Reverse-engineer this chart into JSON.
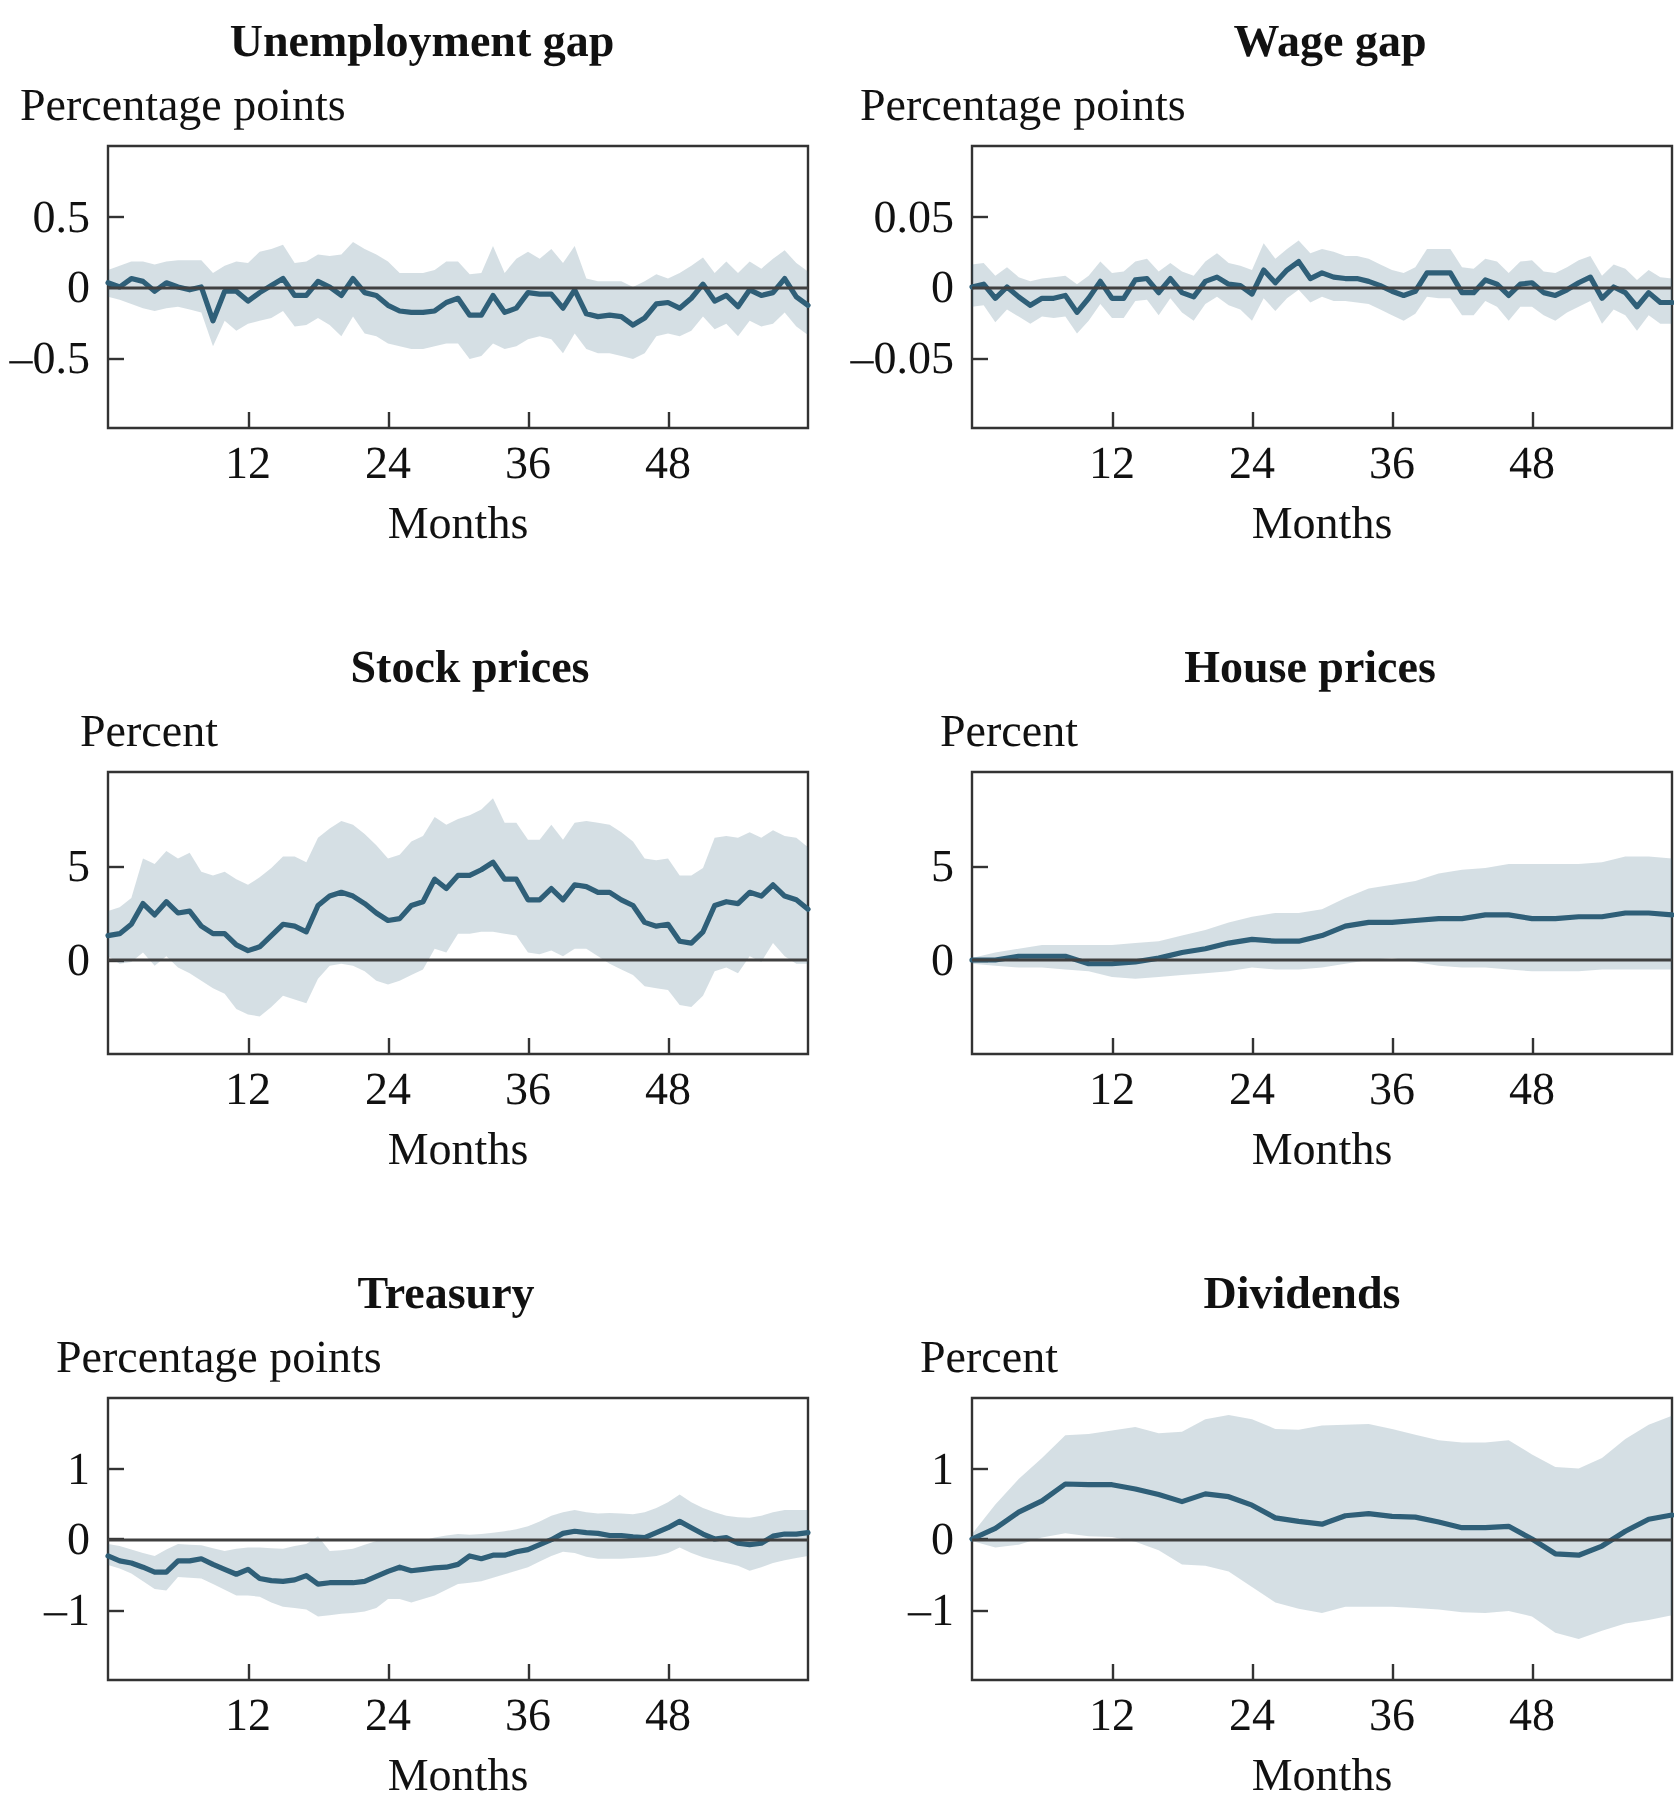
{
  "chart_data": [
    {
      "type": "line",
      "title": "Unemployment gap",
      "ylabel": "Percentage points",
      "xlabel": "Months",
      "xlim": [
        0,
        60
      ],
      "xticks": [
        12,
        24,
        36,
        48
      ],
      "ylim": [
        -1,
        1
      ],
      "yticks": [
        {
          "value": -0.5,
          "label": "–0.5"
        },
        0,
        0.5
      ],
      "ref_lines": [
        {
          "axis": "y",
          "value": 0,
          "color": "#404040"
        }
      ],
      "x": [
        0,
        1,
        2,
        3,
        4,
        5,
        6,
        7,
        8,
        9,
        10,
        11,
        12,
        13,
        14,
        15,
        16,
        17,
        18,
        19,
        20,
        21,
        22,
        23,
        24,
        25,
        26,
        27,
        28,
        29,
        30,
        31,
        32,
        33,
        34,
        35,
        36,
        37,
        38,
        39,
        40,
        41,
        42,
        43,
        44,
        45,
        46,
        47,
        48,
        49,
        50,
        51,
        52,
        53,
        54,
        55,
        56,
        57,
        58,
        59,
        60
      ],
      "series": [
        {
          "color": "#2f5f78",
          "values": [
            0.03,
            0.0,
            0.06,
            0.04,
            -0.03,
            0.03,
            0.0,
            -0.02,
            0.0,
            -0.24,
            -0.03,
            -0.03,
            -0.1,
            -0.04,
            0.01,
            0.06,
            -0.06,
            -0.06,
            0.04,
            0.0,
            -0.06,
            0.06,
            -0.04,
            -0.06,
            -0.13,
            -0.17,
            -0.18,
            -0.18,
            -0.17,
            -0.11,
            -0.08,
            -0.2,
            -0.2,
            -0.06,
            -0.18,
            -0.15,
            -0.04,
            -0.05,
            -0.05,
            -0.15,
            -0.02,
            -0.19,
            -0.21,
            -0.2,
            -0.21,
            -0.27,
            -0.22,
            -0.12,
            -0.11,
            -0.15,
            -0.08,
            0.02,
            -0.1,
            -0.06,
            -0.14,
            -0.02,
            -0.06,
            -0.04,
            0.06,
            -0.07,
            -0.13
          ],
          "upper": [
            0.12,
            0.15,
            0.18,
            0.18,
            0.16,
            0.18,
            0.19,
            0.19,
            0.19,
            0.1,
            0.15,
            0.18,
            0.17,
            0.25,
            0.27,
            0.3,
            0.17,
            0.18,
            0.23,
            0.22,
            0.23,
            0.32,
            0.27,
            0.23,
            0.18,
            0.1,
            0.1,
            0.1,
            0.12,
            0.18,
            0.18,
            0.09,
            0.1,
            0.29,
            0.1,
            0.2,
            0.25,
            0.2,
            0.27,
            0.17,
            0.29,
            0.06,
            0.04,
            0.04,
            0.04,
            0.0,
            0.04,
            0.09,
            0.06,
            0.1,
            0.15,
            0.21,
            0.1,
            0.18,
            0.1,
            0.18,
            0.13,
            0.2,
            0.26,
            0.17,
            0.11
          ],
          "lower": [
            -0.07,
            -0.09,
            -0.12,
            -0.15,
            -0.17,
            -0.15,
            -0.14,
            -0.16,
            -0.18,
            -0.42,
            -0.24,
            -0.31,
            -0.26,
            -0.24,
            -0.22,
            -0.17,
            -0.28,
            -0.27,
            -0.22,
            -0.27,
            -0.35,
            -0.21,
            -0.33,
            -0.35,
            -0.4,
            -0.42,
            -0.44,
            -0.44,
            -0.42,
            -0.4,
            -0.4,
            -0.51,
            -0.49,
            -0.4,
            -0.44,
            -0.42,
            -0.37,
            -0.35,
            -0.37,
            -0.47,
            -0.33,
            -0.44,
            -0.47,
            -0.47,
            -0.49,
            -0.51,
            -0.47,
            -0.35,
            -0.33,
            -0.35,
            -0.31,
            -0.21,
            -0.3,
            -0.26,
            -0.35,
            -0.24,
            -0.28,
            -0.26,
            -0.18,
            -0.28,
            -0.34
          ]
        }
      ]
    },
    {
      "type": "line",
      "title": "Wage gap",
      "ylabel": "Percentage points",
      "xlabel": "Months",
      "xlim": [
        0,
        60
      ],
      "xticks": [
        12,
        24,
        36,
        48
      ],
      "ylim": [
        -0.1,
        0.1
      ],
      "yticks": [
        {
          "value": -0.05,
          "label": "–0.05"
        },
        0,
        0.05
      ],
      "ref_lines": [
        {
          "axis": "y",
          "value": 0,
          "color": "#404040"
        }
      ],
      "x": [
        0,
        1,
        2,
        3,
        4,
        5,
        6,
        7,
        8,
        9,
        10,
        11,
        12,
        13,
        14,
        15,
        16,
        17,
        18,
        19,
        20,
        21,
        22,
        23,
        24,
        25,
        26,
        27,
        28,
        29,
        30,
        31,
        32,
        33,
        34,
        35,
        36,
        37,
        38,
        39,
        40,
        41,
        42,
        43,
        44,
        45,
        46,
        47,
        48,
        49,
        50,
        51,
        52,
        53,
        54,
        55,
        56,
        57,
        58,
        59,
        60
      ],
      "series": [
        {
          "color": "#2f5f78",
          "values": [
            0.0,
            0.002,
            -0.008,
            0.0,
            -0.007,
            -0.013,
            -0.008,
            -0.008,
            -0.006,
            -0.018,
            -0.008,
            0.004,
            -0.008,
            -0.008,
            0.005,
            0.006,
            -0.004,
            0.006,
            -0.004,
            -0.007,
            0.004,
            0.007,
            0.002,
            0.001,
            -0.005,
            0.012,
            0.003,
            0.012,
            0.018,
            0.006,
            0.01,
            0.007,
            0.006,
            0.006,
            0.004,
            0.001,
            -0.003,
            -0.006,
            -0.003,
            0.01,
            0.01,
            0.01,
            -0.004,
            -0.004,
            0.005,
            0.002,
            -0.006,
            0.002,
            0.003,
            -0.004,
            -0.006,
            -0.002,
            0.003,
            0.007,
            -0.008,
            0.0,
            -0.004,
            -0.014,
            -0.004,
            -0.011,
            -0.011
          ],
          "upper": [
            0.016,
            0.017,
            0.008,
            0.014,
            0.007,
            0.004,
            0.006,
            0.007,
            0.008,
            0.002,
            0.008,
            0.018,
            0.01,
            0.011,
            0.018,
            0.02,
            0.011,
            0.017,
            0.011,
            0.008,
            0.018,
            0.024,
            0.017,
            0.015,
            0.012,
            0.031,
            0.02,
            0.027,
            0.033,
            0.024,
            0.027,
            0.025,
            0.022,
            0.022,
            0.02,
            0.016,
            0.012,
            0.01,
            0.014,
            0.027,
            0.027,
            0.027,
            0.014,
            0.013,
            0.02,
            0.018,
            0.01,
            0.018,
            0.019,
            0.011,
            0.01,
            0.014,
            0.019,
            0.022,
            0.008,
            0.016,
            0.013,
            0.005,
            0.012,
            0.007,
            0.006
          ],
          "lower": [
            -0.014,
            -0.013,
            -0.025,
            -0.016,
            -0.021,
            -0.026,
            -0.021,
            -0.022,
            -0.021,
            -0.033,
            -0.024,
            -0.012,
            -0.022,
            -0.022,
            -0.01,
            -0.009,
            -0.02,
            -0.008,
            -0.018,
            -0.024,
            -0.012,
            -0.007,
            -0.013,
            -0.016,
            -0.024,
            -0.008,
            -0.017,
            -0.008,
            -0.002,
            -0.011,
            -0.007,
            -0.01,
            -0.01,
            -0.011,
            -0.012,
            -0.016,
            -0.02,
            -0.024,
            -0.019,
            -0.007,
            -0.008,
            -0.008,
            -0.02,
            -0.02,
            -0.01,
            -0.014,
            -0.024,
            -0.014,
            -0.014,
            -0.02,
            -0.024,
            -0.018,
            -0.014,
            -0.01,
            -0.026,
            -0.016,
            -0.02,
            -0.031,
            -0.02,
            -0.026,
            -0.026
          ]
        }
      ]
    },
    {
      "type": "line",
      "title": "Stock prices",
      "ylabel": "Percent",
      "xlabel": "Months",
      "xlim": [
        0,
        60
      ],
      "xticks": [
        12,
        24,
        36,
        48
      ],
      "ylim": [
        -5,
        10
      ],
      "yticks": [
        0,
        5
      ],
      "ref_lines": [
        {
          "axis": "y",
          "value": 0,
          "color": "#404040"
        }
      ],
      "x": [
        0,
        1,
        2,
        3,
        4,
        5,
        6,
        7,
        8,
        9,
        10,
        11,
        12,
        13,
        14,
        15,
        16,
        17,
        18,
        19,
        20,
        21,
        22,
        23,
        24,
        25,
        26,
        27,
        28,
        29,
        30,
        31,
        32,
        33,
        34,
        35,
        36,
        37,
        38,
        39,
        40,
        41,
        42,
        43,
        44,
        45,
        46,
        47,
        48,
        49,
        50,
        51,
        52,
        53,
        54,
        55,
        56,
        57,
        58,
        59,
        60
      ],
      "series": [
        {
          "color": "#2f5f78",
          "values": [
            1.3,
            1.4,
            1.9,
            3.0,
            2.4,
            3.1,
            2.5,
            2.6,
            1.8,
            1.4,
            1.4,
            0.8,
            0.5,
            0.7,
            1.3,
            1.9,
            1.8,
            1.5,
            2.9,
            3.4,
            3.6,
            3.4,
            3.0,
            2.5,
            2.1,
            2.2,
            2.9,
            3.1,
            4.3,
            3.8,
            4.5,
            4.5,
            4.8,
            5.2,
            4.3,
            4.3,
            3.2,
            3.2,
            3.8,
            3.2,
            4.0,
            3.9,
            3.6,
            3.6,
            3.2,
            2.9,
            2.0,
            1.8,
            1.9,
            1.0,
            0.9,
            1.5,
            2.9,
            3.1,
            3.0,
            3.6,
            3.4,
            4.0,
            3.4,
            3.2,
            2.7
          ],
          "upper": [
            2.6,
            2.8,
            3.3,
            5.4,
            5.1,
            5.8,
            5.4,
            5.7,
            4.7,
            4.5,
            4.7,
            4.3,
            4.0,
            4.4,
            4.9,
            5.5,
            5.5,
            5.2,
            6.5,
            7.0,
            7.4,
            7.2,
            6.7,
            6.1,
            5.4,
            5.6,
            6.3,
            6.6,
            7.6,
            7.2,
            7.5,
            7.7,
            8.0,
            8.6,
            7.3,
            7.3,
            6.4,
            6.4,
            7.2,
            6.4,
            7.3,
            7.4,
            7.3,
            7.2,
            6.8,
            6.3,
            5.4,
            5.3,
            5.4,
            4.5,
            4.5,
            4.9,
            6.5,
            6.6,
            6.5,
            6.8,
            6.5,
            6.9,
            6.6,
            6.5,
            6.0
          ],
          "lower": [
            0.2,
            -0.2,
            -0.1,
            0.4,
            -0.3,
            0.2,
            -0.4,
            -0.7,
            -1.1,
            -1.5,
            -1.8,
            -2.6,
            -2.9,
            -3.0,
            -2.5,
            -1.9,
            -2.1,
            -2.3,
            -1.0,
            -0.3,
            -0.2,
            -0.3,
            -0.6,
            -1.1,
            -1.3,
            -1.1,
            -0.8,
            -0.5,
            0.6,
            0.4,
            1.4,
            1.4,
            1.5,
            1.5,
            1.4,
            1.3,
            0.4,
            0.3,
            0.5,
            0.2,
            0.6,
            0.6,
            0.2,
            -0.2,
            -0.5,
            -0.8,
            -1.4,
            -1.5,
            -1.6,
            -2.4,
            -2.5,
            -1.9,
            -0.6,
            -0.4,
            -0.7,
            0.2,
            -0.1,
            0.9,
            0.2,
            -0.2,
            -0.2
          ]
        }
      ]
    },
    {
      "type": "line",
      "title": "House prices",
      "ylabel": "Percent",
      "xlabel": "Months",
      "xlim": [
        0,
        60
      ],
      "xticks": [
        12,
        24,
        36,
        48
      ],
      "ylim": [
        -5,
        10
      ],
      "yticks": [
        0,
        5
      ],
      "ref_lines": [
        {
          "axis": "y",
          "value": 0,
          "color": "#404040"
        }
      ],
      "x": [
        0,
        2,
        4,
        6,
        8,
        10,
        12,
        14,
        16,
        18,
        20,
        22,
        24,
        26,
        28,
        30,
        32,
        34,
        36,
        38,
        40,
        42,
        44,
        46,
        48,
        50,
        52,
        54,
        56,
        58,
        60
      ],
      "series": [
        {
          "color": "#2f5f78",
          "values": [
            0.0,
            0.0,
            0.2,
            0.2,
            0.2,
            -0.2,
            -0.2,
            -0.1,
            0.1,
            0.4,
            0.6,
            0.9,
            1.1,
            1.0,
            1.0,
            1.3,
            1.8,
            2.0,
            2.0,
            2.1,
            2.2,
            2.2,
            2.4,
            2.4,
            2.2,
            2.2,
            2.3,
            2.3,
            2.5,
            2.5,
            2.4
          ],
          "upper": [
            0.1,
            0.4,
            0.6,
            0.8,
            0.8,
            0.8,
            0.8,
            0.9,
            1.0,
            1.3,
            1.6,
            2.0,
            2.3,
            2.5,
            2.5,
            2.7,
            3.3,
            3.8,
            4.0,
            4.2,
            4.6,
            4.8,
            4.9,
            5.1,
            5.1,
            5.1,
            5.1,
            5.2,
            5.5,
            5.5,
            5.4
          ],
          "lower": [
            -0.2,
            -0.3,
            -0.4,
            -0.4,
            -0.5,
            -0.6,
            -0.9,
            -1.0,
            -0.9,
            -0.8,
            -0.7,
            -0.6,
            -0.4,
            -0.5,
            -0.5,
            -0.4,
            -0.2,
            0.0,
            0.1,
            -0.1,
            -0.3,
            -0.4,
            -0.4,
            -0.5,
            -0.6,
            -0.6,
            -0.6,
            -0.5,
            -0.5,
            -0.5,
            -0.5
          ]
        }
      ]
    },
    {
      "type": "line",
      "title": "Treasury",
      "ylabel": "Percentage points",
      "xlabel": "Months",
      "xlim": [
        0,
        60
      ],
      "xticks": [
        12,
        24,
        36,
        48
      ],
      "ylim": [
        -2,
        2
      ],
      "yticks": [
        {
          "value": -1,
          "label": "–1"
        },
        0,
        1
      ],
      "ref_lines": [
        {
          "axis": "y",
          "value": 0,
          "color": "#404040"
        }
      ],
      "x": [
        0,
        1,
        2,
        3,
        4,
        5,
        6,
        7,
        8,
        9,
        10,
        11,
        12,
        13,
        14,
        15,
        16,
        17,
        18,
        19,
        20,
        21,
        22,
        23,
        24,
        25,
        26,
        27,
        28,
        29,
        30,
        31,
        32,
        33,
        34,
        35,
        36,
        37,
        38,
        39,
        40,
        41,
        42,
        43,
        44,
        45,
        46,
        47,
        48,
        49,
        50,
        51,
        52,
        53,
        54,
        55,
        56,
        57,
        58,
        59,
        60
      ],
      "series": [
        {
          "color": "#2f5f78",
          "values": [
            -0.24,
            -0.31,
            -0.34,
            -0.4,
            -0.47,
            -0.47,
            -0.31,
            -0.31,
            -0.28,
            -0.36,
            -0.43,
            -0.5,
            -0.43,
            -0.56,
            -0.59,
            -0.6,
            -0.58,
            -0.52,
            -0.64,
            -0.62,
            -0.62,
            -0.62,
            -0.6,
            -0.53,
            -0.46,
            -0.4,
            -0.45,
            -0.43,
            -0.41,
            -0.4,
            -0.36,
            -0.24,
            -0.28,
            -0.23,
            -0.23,
            -0.18,
            -0.15,
            -0.08,
            -0.01,
            0.08,
            0.11,
            0.09,
            0.08,
            0.05,
            0.05,
            0.03,
            0.02,
            0.09,
            0.16,
            0.25,
            0.16,
            0.07,
            0.0,
            0.02,
            -0.06,
            -0.08,
            -0.06,
            0.04,
            0.07,
            0.07,
            0.09
          ],
          "upper": [
            -0.07,
            -0.1,
            -0.15,
            -0.2,
            -0.24,
            -0.15,
            -0.07,
            -0.08,
            -0.09,
            -0.13,
            -0.17,
            -0.14,
            -0.12,
            -0.12,
            -0.13,
            -0.14,
            -0.1,
            -0.07,
            0.04,
            -0.17,
            -0.16,
            -0.14,
            -0.08,
            -0.03,
            0.0,
            -0.01,
            -0.02,
            -0.02,
            0.02,
            0.05,
            0.07,
            0.06,
            0.07,
            0.09,
            0.11,
            0.14,
            0.18,
            0.25,
            0.33,
            0.38,
            0.41,
            0.38,
            0.36,
            0.37,
            0.36,
            0.35,
            0.38,
            0.44,
            0.52,
            0.63,
            0.52,
            0.44,
            0.38,
            0.33,
            0.31,
            0.3,
            0.33,
            0.38,
            0.41,
            0.41,
            0.41
          ],
          "lower": [
            -0.37,
            -0.42,
            -0.49,
            -0.6,
            -0.71,
            -0.73,
            -0.54,
            -0.55,
            -0.56,
            -0.64,
            -0.72,
            -0.8,
            -0.8,
            -0.82,
            -0.9,
            -0.96,
            -0.98,
            -1.0,
            -1.1,
            -1.08,
            -1.06,
            -1.05,
            -1.03,
            -0.98,
            -0.85,
            -0.85,
            -0.9,
            -0.85,
            -0.8,
            -0.72,
            -0.64,
            -0.62,
            -0.6,
            -0.55,
            -0.5,
            -0.45,
            -0.4,
            -0.32,
            -0.24,
            -0.18,
            -0.2,
            -0.25,
            -0.28,
            -0.28,
            -0.28,
            -0.27,
            -0.26,
            -0.24,
            -0.2,
            -0.12,
            -0.2,
            -0.26,
            -0.3,
            -0.34,
            -0.38,
            -0.45,
            -0.4,
            -0.34,
            -0.3,
            -0.27,
            -0.24
          ]
        }
      ]
    },
    {
      "type": "line",
      "title": "Dividends",
      "ylabel": "Percent",
      "xlabel": "Months",
      "xlim": [
        0,
        60
      ],
      "xticks": [
        12,
        24,
        36,
        48
      ],
      "ylim": [
        -2,
        2
      ],
      "yticks": [
        {
          "value": -1,
          "label": "–1"
        },
        0,
        1
      ],
      "ref_lines": [
        {
          "axis": "y",
          "value": 0,
          "color": "#404040"
        }
      ],
      "x": [
        0,
        2,
        4,
        6,
        8,
        10,
        12,
        14,
        16,
        18,
        20,
        22,
        24,
        26,
        28,
        30,
        32,
        34,
        36,
        38,
        40,
        42,
        44,
        46,
        48,
        50,
        52,
        54,
        56,
        58,
        60
      ],
      "series": [
        {
          "color": "#2f5f78",
          "values": [
            0.0,
            0.15,
            0.38,
            0.54,
            0.78,
            0.77,
            0.77,
            0.71,
            0.63,
            0.53,
            0.64,
            0.6,
            0.48,
            0.3,
            0.25,
            0.21,
            0.33,
            0.36,
            0.32,
            0.31,
            0.24,
            0.16,
            0.16,
            0.18,
            0.0,
            -0.21,
            -0.23,
            -0.1,
            0.11,
            0.28,
            0.34
          ],
          "upper": [
            0.07,
            0.49,
            0.85,
            1.15,
            1.47,
            1.49,
            1.54,
            1.59,
            1.5,
            1.52,
            1.7,
            1.76,
            1.7,
            1.56,
            1.55,
            1.61,
            1.62,
            1.63,
            1.56,
            1.48,
            1.4,
            1.37,
            1.37,
            1.4,
            1.2,
            1.02,
            1.0,
            1.15,
            1.42,
            1.62,
            1.75
          ],
          "lower": [
            -0.03,
            -0.12,
            -0.08,
            0.02,
            0.08,
            0.04,
            0.03,
            -0.04,
            -0.16,
            -0.36,
            -0.38,
            -0.46,
            -0.68,
            -0.9,
            -0.99,
            -1.05,
            -0.96,
            -0.96,
            -0.96,
            -0.98,
            -1.0,
            -1.04,
            -1.05,
            -1.02,
            -1.1,
            -1.33,
            -1.42,
            -1.3,
            -1.2,
            -1.15,
            -1.08
          ]
        }
      ]
    }
  ]
}
